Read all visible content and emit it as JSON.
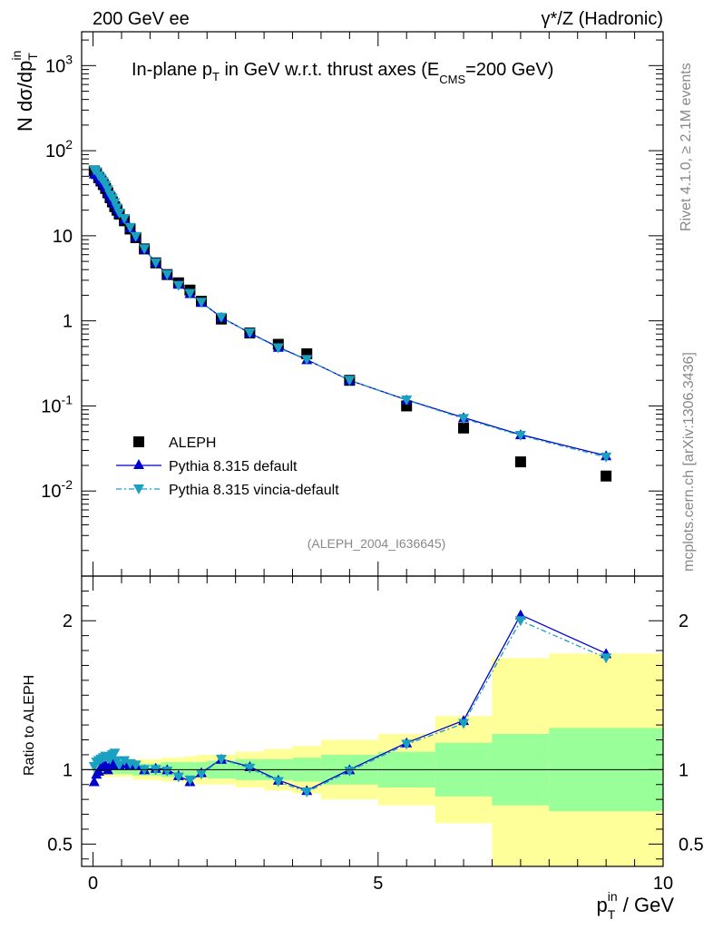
{
  "header": {
    "left": "200 GeV ee",
    "right": "γ*/Z (Hadronic)"
  },
  "side_labels": {
    "rivet": "Rivet 4.1.0, ≥ 2.1M events",
    "mcplots": "mcplots.cern.ch [arXiv:1306.3436]"
  },
  "chart_data": {
    "type": "scatter",
    "title": "In-plane p_T in GeV w.r.t. thrust axes (E_CMS=200 GeV)",
    "analysis_tag": "(ALEPH_2004_I636645)",
    "xlabel": "p_T^in / GeV",
    "ylabel_main": "N dσ/dp_T^in",
    "ylabel_ratio": "Ratio to ALEPH",
    "xlim": [
      -0.2,
      10
    ],
    "ylim_main": [
      0.001,
      2500
    ],
    "ylim_ratio": [
      0.35,
      2.3
    ],
    "y_scale_main": "log",
    "x_ticks": [
      "0",
      "5",
      "10"
    ],
    "y_ticks_main": [
      {
        "value": 0.01,
        "label": "10^-2"
      },
      {
        "value": 0.1,
        "label": "10^-1"
      },
      {
        "value": 1,
        "label": "1"
      },
      {
        "value": 10,
        "label": "10"
      },
      {
        "value": 100,
        "label": "10^2"
      },
      {
        "value": 1000,
        "label": "10^3"
      }
    ],
    "y_ticks_ratio": [
      {
        "value": 0.5,
        "label": "0.5"
      },
      {
        "value": 1,
        "label": "1"
      },
      {
        "value": 2,
        "label": "2"
      }
    ],
    "legend": [
      "ALEPH",
      "Pythia 8.315 default",
      "Pythia 8.315 vincia-default"
    ],
    "data": {
      "name": "ALEPH",
      "x": [
        0.02,
        0.06,
        0.1,
        0.14,
        0.18,
        0.22,
        0.26,
        0.3,
        0.34,
        0.38,
        0.42,
        0.46,
        0.55,
        0.65,
        0.75,
        0.9,
        1.1,
        1.3,
        1.5,
        1.7,
        1.9,
        2.25,
        2.75,
        3.25,
        3.75,
        4.5,
        5.5,
        6.5,
        7.5,
        9.0
      ],
      "y": [
        58,
        54,
        48,
        44,
        40,
        36,
        32,
        28,
        25,
        22,
        20,
        18,
        15,
        12,
        9.5,
        7.0,
        4.8,
        3.5,
        2.8,
        2.3,
        1.7,
        1.05,
        0.72,
        0.53,
        0.41,
        0.2,
        0.1,
        0.055,
        0.022,
        0.015
      ]
    },
    "series": [
      {
        "name": "Pythia 8.315 default",
        "color": "#0000cc",
        "x": [
          0.02,
          0.06,
          0.1,
          0.14,
          0.18,
          0.22,
          0.26,
          0.3,
          0.34,
          0.38,
          0.42,
          0.46,
          0.55,
          0.65,
          0.75,
          0.9,
          1.1,
          1.3,
          1.5,
          1.7,
          1.9,
          2.25,
          2.75,
          3.25,
          3.75,
          4.5,
          5.5,
          6.5,
          7.5,
          9.0
        ],
        "y": [
          53.4,
          52.4,
          47.5,
          44.9,
          41.2,
          37.1,
          32.0,
          28.8,
          25.8,
          23.5,
          20.6,
          18.5,
          15.6,
          12.4,
          9.8,
          7.0,
          4.85,
          3.5,
          2.7,
          2.1,
          1.65,
          1.1,
          0.72,
          0.49,
          0.35,
          0.2,
          0.118,
          0.073,
          0.046,
          0.026
        ],
        "ratio": [
          0.92,
          0.97,
          0.99,
          1.02,
          1.03,
          1.03,
          1.0,
          1.03,
          1.03,
          1.07,
          1.03,
          1.03,
          1.04,
          1.03,
          1.03,
          1.0,
          1.01,
          1.0,
          0.96,
          0.92,
          0.98,
          1.07,
          1.02,
          0.93,
          0.86,
          1.0,
          1.18,
          1.33,
          2.04,
          1.78
        ]
      },
      {
        "name": "Pythia 8.315 vincia-default",
        "color": "#1aa0c0",
        "x": [
          0.02,
          0.06,
          0.1,
          0.14,
          0.18,
          0.22,
          0.26,
          0.3,
          0.34,
          0.38,
          0.42,
          0.46,
          0.55,
          0.65,
          0.75,
          0.9,
          1.1,
          1.3,
          1.5,
          1.7,
          1.9,
          2.25,
          2.75,
          3.25,
          3.75,
          4.5,
          5.5,
          6.5,
          7.5,
          9.0
        ],
        "y": [
          59.2,
          56.7,
          50.9,
          47.3,
          43.2,
          39.2,
          34.6,
          30.0,
          27.5,
          24.4,
          21.2,
          18.5,
          15.9,
          12.5,
          9.8,
          7.0,
          4.8,
          3.5,
          2.6,
          2.1,
          1.65,
          1.1,
          0.72,
          0.48,
          0.35,
          0.2,
          0.117,
          0.071,
          0.045,
          0.025
        ],
        "ratio": [
          1.02,
          1.05,
          1.06,
          1.07,
          1.08,
          1.09,
          1.08,
          1.07,
          1.1,
          1.11,
          1.06,
          1.03,
          1.06,
          1.04,
          1.03,
          1.0,
          1.0,
          0.99,
          0.95,
          0.93,
          0.97,
          1.07,
          1.01,
          0.92,
          0.85,
          0.99,
          1.17,
          1.31,
          2.0,
          1.75
        ]
      }
    ],
    "uncertainty_bands": {
      "edges": [
        0.0,
        0.04,
        0.08,
        0.12,
        0.16,
        0.2,
        0.24,
        0.28,
        0.32,
        0.36,
        0.4,
        0.44,
        0.48,
        0.6,
        0.7,
        0.8,
        1.0,
        1.2,
        1.4,
        1.6,
        1.8,
        2.0,
        2.5,
        3.0,
        3.5,
        4.0,
        5.0,
        6.0,
        7.0,
        8.0,
        10.0
      ],
      "green_lo": [
        0.97,
        0.97,
        0.97,
        0.97,
        0.97,
        0.97,
        0.97,
        0.97,
        0.97,
        0.97,
        0.97,
        0.97,
        0.97,
        0.97,
        0.96,
        0.96,
        0.96,
        0.95,
        0.95,
        0.95,
        0.95,
        0.94,
        0.93,
        0.93,
        0.92,
        0.9,
        0.88,
        0.82,
        0.76,
        0.72
      ],
      "green_hi": [
        1.03,
        1.03,
        1.03,
        1.03,
        1.03,
        1.03,
        1.03,
        1.03,
        1.03,
        1.03,
        1.03,
        1.03,
        1.03,
        1.03,
        1.04,
        1.04,
        1.04,
        1.05,
        1.05,
        1.05,
        1.05,
        1.06,
        1.07,
        1.07,
        1.08,
        1.1,
        1.12,
        1.18,
        1.24,
        1.28
      ],
      "yellow_lo": [
        0.95,
        0.95,
        0.95,
        0.95,
        0.95,
        0.95,
        0.95,
        0.95,
        0.95,
        0.95,
        0.95,
        0.95,
        0.95,
        0.95,
        0.93,
        0.93,
        0.93,
        0.92,
        0.92,
        0.91,
        0.9,
        0.9,
        0.88,
        0.86,
        0.84,
        0.8,
        0.76,
        0.64,
        0.1,
        0.1
      ],
      "yellow_hi": [
        1.05,
        1.05,
        1.05,
        1.05,
        1.05,
        1.05,
        1.05,
        1.05,
        1.05,
        1.05,
        1.05,
        1.05,
        1.05,
        1.05,
        1.07,
        1.07,
        1.07,
        1.08,
        1.08,
        1.09,
        1.1,
        1.1,
        1.12,
        1.14,
        1.16,
        1.2,
        1.24,
        1.36,
        1.75,
        1.78
      ]
    },
    "colors": {
      "band_green": "#99ff99",
      "band_yellow": "#ffff99",
      "data_marker": "#000000"
    }
  }
}
